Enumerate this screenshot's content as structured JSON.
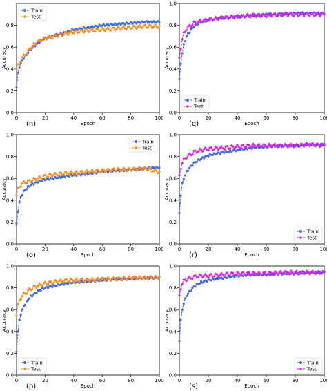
{
  "colors": {
    "train": "#4169e1",
    "test_orange": "#ff8c1a",
    "test_magenta": "#e01ee0"
  },
  "chart_data": [
    {
      "panel": "(n)",
      "type": "line",
      "xlabel": "Epoch",
      "ylabel": "Accuracy",
      "xlim": [
        0,
        100
      ],
      "ylim": [
        0,
        1.0
      ],
      "xticks": [
        0,
        20,
        40,
        60,
        80,
        100
      ],
      "yticks": [
        0.0,
        0.2,
        0.4,
        0.6,
        0.8
      ],
      "legend_position": "top-left",
      "series": [
        {
          "name": "Train",
          "color": "#4169e1",
          "marker": "circle",
          "x": [
            0,
            1,
            2,
            3,
            5,
            8,
            10,
            15,
            20,
            30,
            40,
            50,
            60,
            70,
            80,
            90,
            100
          ],
          "y": [
            0.23,
            0.36,
            0.42,
            0.45,
            0.5,
            0.55,
            0.58,
            0.64,
            0.68,
            0.72,
            0.76,
            0.78,
            0.8,
            0.81,
            0.82,
            0.83,
            0.83
          ]
        },
        {
          "name": "Test",
          "color": "#ff8c1a",
          "marker": "diamond",
          "x": [
            0,
            1,
            2,
            3,
            5,
            8,
            10,
            15,
            20,
            30,
            40,
            50,
            60,
            70,
            80,
            90,
            100
          ],
          "y": [
            0.4,
            0.43,
            0.45,
            0.48,
            0.52,
            0.56,
            0.6,
            0.65,
            0.68,
            0.71,
            0.74,
            0.75,
            0.76,
            0.77,
            0.78,
            0.79,
            0.79
          ]
        }
      ]
    },
    {
      "panel": "(q)",
      "type": "line",
      "xlabel": "Epoch",
      "ylabel": "Accuracy",
      "xlim": [
        0,
        100
      ],
      "ylim": [
        0,
        1.0
      ],
      "xticks": [
        0,
        20,
        40,
        60,
        80,
        100
      ],
      "yticks": [
        0.0,
        0.2,
        0.4,
        0.6,
        0.8,
        1.0
      ],
      "legend_position": "bottom-left",
      "series": [
        {
          "name": "Train",
          "color": "#4169e1",
          "marker": "circle",
          "x": [
            0,
            1,
            2,
            3,
            5,
            8,
            10,
            15,
            20,
            30,
            40,
            50,
            60,
            70,
            80,
            90,
            100
          ],
          "y": [
            0.3,
            0.45,
            0.55,
            0.62,
            0.7,
            0.76,
            0.79,
            0.83,
            0.85,
            0.87,
            0.88,
            0.89,
            0.9,
            0.9,
            0.91,
            0.91,
            0.91
          ]
        },
        {
          "name": "Test",
          "color": "#e01ee0",
          "marker": "diamond",
          "x": [
            0,
            1,
            2,
            3,
            5,
            8,
            10,
            15,
            20,
            30,
            40,
            50,
            60,
            70,
            80,
            90,
            100
          ],
          "y": [
            0.5,
            0.6,
            0.67,
            0.72,
            0.77,
            0.8,
            0.82,
            0.84,
            0.85,
            0.87,
            0.88,
            0.89,
            0.89,
            0.9,
            0.9,
            0.9,
            0.9
          ]
        }
      ]
    },
    {
      "panel": "(o)",
      "type": "line",
      "xlabel": "Epoch",
      "ylabel": "Accuracy",
      "xlim": [
        0,
        100
      ],
      "ylim": [
        0,
        1.0
      ],
      "xticks": [
        0,
        20,
        40,
        60,
        80,
        100
      ],
      "yticks": [
        0.0,
        0.2,
        0.4,
        0.6,
        0.8,
        1.0
      ],
      "legend_position": "top-right",
      "series": [
        {
          "name": "Train",
          "color": "#4169e1",
          "marker": "circle",
          "x": [
            0,
            1,
            2,
            3,
            5,
            8,
            10,
            15,
            20,
            30,
            40,
            50,
            60,
            70,
            80,
            90,
            100
          ],
          "y": [
            0.18,
            0.3,
            0.38,
            0.43,
            0.48,
            0.52,
            0.54,
            0.57,
            0.59,
            0.61,
            0.63,
            0.64,
            0.66,
            0.67,
            0.68,
            0.69,
            0.7
          ]
        },
        {
          "name": "Test",
          "color": "#ff8c1a",
          "marker": "diamond",
          "x": [
            0,
            1,
            2,
            3,
            5,
            8,
            10,
            15,
            20,
            30,
            40,
            50,
            60,
            70,
            80,
            90,
            100
          ],
          "y": [
            0.45,
            0.5,
            0.52,
            0.54,
            0.56,
            0.57,
            0.58,
            0.6,
            0.62,
            0.64,
            0.65,
            0.66,
            0.67,
            0.68,
            0.68,
            0.69,
            0.66
          ]
        }
      ]
    },
    {
      "panel": "(r)",
      "type": "line",
      "xlabel": "Epoch",
      "ylabel": "Accuracy",
      "xlim": [
        0,
        100
      ],
      "ylim": [
        0,
        1.0
      ],
      "xticks": [
        0,
        20,
        40,
        60,
        80,
        100
      ],
      "yticks": [
        0.0,
        0.2,
        0.4,
        0.6,
        0.8,
        1.0
      ],
      "legend_position": "bottom-right",
      "series": [
        {
          "name": "Train",
          "color": "#4169e1",
          "marker": "circle",
          "x": [
            0,
            1,
            2,
            3,
            5,
            8,
            10,
            15,
            20,
            30,
            40,
            50,
            60,
            70,
            80,
            90,
            100
          ],
          "y": [
            0.28,
            0.45,
            0.55,
            0.6,
            0.66,
            0.71,
            0.74,
            0.78,
            0.81,
            0.84,
            0.86,
            0.88,
            0.89,
            0.9,
            0.9,
            0.91,
            0.91
          ]
        },
        {
          "name": "Test",
          "color": "#e01ee0",
          "marker": "diamond",
          "x": [
            0,
            1,
            2,
            3,
            5,
            8,
            10,
            15,
            20,
            30,
            40,
            50,
            60,
            70,
            80,
            90,
            100
          ],
          "y": [
            0.62,
            0.7,
            0.74,
            0.77,
            0.8,
            0.82,
            0.84,
            0.86,
            0.87,
            0.88,
            0.89,
            0.9,
            0.9,
            0.9,
            0.9,
            0.91,
            0.9
          ]
        }
      ]
    },
    {
      "panel": "(p)",
      "type": "line",
      "xlabel": "Epoch",
      "ylabel": "Accuracy",
      "xlim": [
        0,
        100
      ],
      "ylim": [
        0,
        1.0
      ],
      "xticks": [
        0,
        20,
        40,
        60,
        80,
        100
      ],
      "yticks": [
        0.0,
        0.2,
        0.4,
        0.6,
        0.8,
        1.0
      ],
      "legend_position": "bottom-left",
      "series": [
        {
          "name": "Train",
          "color": "#4169e1",
          "marker": "circle",
          "x": [
            0,
            1,
            2,
            3,
            5,
            8,
            10,
            15,
            20,
            30,
            40,
            50,
            60,
            70,
            80,
            90,
            100
          ],
          "y": [
            0.22,
            0.4,
            0.5,
            0.56,
            0.63,
            0.69,
            0.72,
            0.77,
            0.8,
            0.83,
            0.85,
            0.86,
            0.87,
            0.88,
            0.88,
            0.89,
            0.89
          ]
        },
        {
          "name": "Test",
          "color": "#ff8c1a",
          "marker": "diamond",
          "x": [
            0,
            1,
            2,
            3,
            5,
            8,
            10,
            15,
            20,
            30,
            40,
            50,
            60,
            70,
            80,
            90,
            100
          ],
          "y": [
            0.55,
            0.64,
            0.68,
            0.71,
            0.74,
            0.77,
            0.79,
            0.82,
            0.84,
            0.86,
            0.87,
            0.87,
            0.88,
            0.88,
            0.89,
            0.89,
            0.9
          ]
        }
      ]
    },
    {
      "panel": "(s)",
      "type": "line",
      "xlabel": "Epoch",
      "ylabel": "Accuracy",
      "xlim": [
        0,
        100
      ],
      "ylim": [
        0,
        1.0
      ],
      "xticks": [
        0,
        20,
        40,
        60,
        80,
        100
      ],
      "yticks": [
        0.0,
        0.2,
        0.4,
        0.6,
        0.8,
        1.0
      ],
      "legend_position": "bottom-right",
      "series": [
        {
          "name": "Train",
          "color": "#4169e1",
          "marker": "circle",
          "x": [
            0,
            1,
            2,
            3,
            5,
            8,
            10,
            15,
            20,
            30,
            40,
            50,
            60,
            70,
            80,
            90,
            100
          ],
          "y": [
            0.32,
            0.5,
            0.6,
            0.66,
            0.73,
            0.78,
            0.81,
            0.85,
            0.87,
            0.89,
            0.91,
            0.92,
            0.92,
            0.93,
            0.93,
            0.94,
            0.94
          ]
        },
        {
          "name": "Test",
          "color": "#e01ee0",
          "marker": "diamond",
          "x": [
            0,
            1,
            2,
            3,
            5,
            8,
            10,
            15,
            20,
            30,
            40,
            50,
            60,
            70,
            80,
            90,
            100
          ],
          "y": [
            0.72,
            0.8,
            0.84,
            0.86,
            0.88,
            0.89,
            0.9,
            0.91,
            0.91,
            0.92,
            0.93,
            0.93,
            0.93,
            0.94,
            0.94,
            0.94,
            0.94
          ]
        }
      ]
    }
  ]
}
